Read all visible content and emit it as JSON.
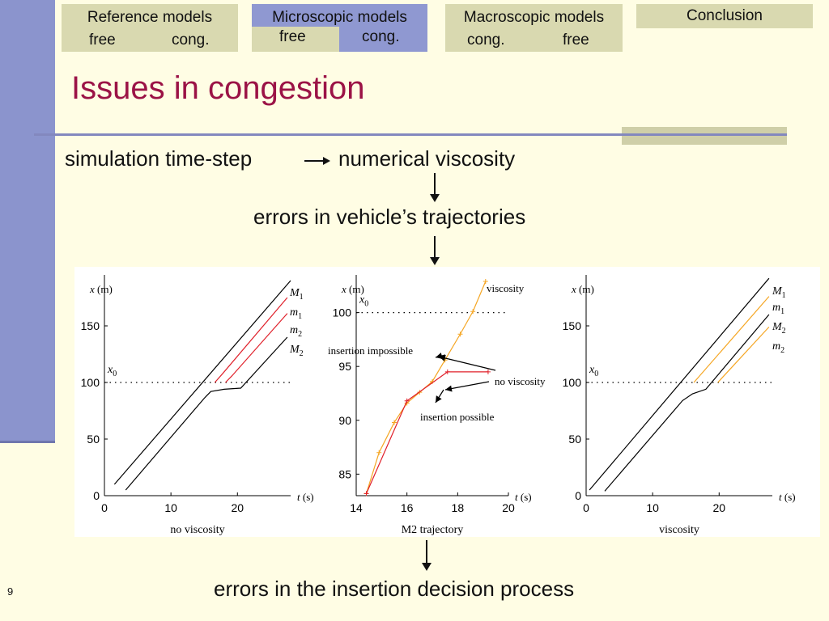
{
  "nav": [
    {
      "title": "Reference models",
      "left": "free",
      "right": "cong."
    },
    {
      "title": "Microscopic models",
      "left": "free",
      "right": "cong."
    },
    {
      "title": "Macroscopic models",
      "left": "cong.",
      "right": "free"
    },
    {
      "title": "Conclusion"
    }
  ],
  "title": "Issues in congestion",
  "flow": {
    "left": "simulation time-step",
    "right": "numerical viscosity",
    "middle": "errors in vehicle’s trajectories",
    "bottom": "errors in the insertion decision process"
  },
  "page_number": "9",
  "colors": {
    "red": "#e0202a",
    "orange": "#f5a623",
    "black": "#000000",
    "accent": "#9b1346"
  },
  "chart_data": [
    {
      "type": "line",
      "xlabel": "t (s)",
      "ylabel": "x (m)",
      "caption": "no viscosity",
      "xlim": [
        0,
        28
      ],
      "ylim": [
        0,
        195
      ],
      "xticks": [
        0,
        10,
        20
      ],
      "yticks": [
        0,
        50,
        100,
        150
      ],
      "reference_line": {
        "label": "x0",
        "y": 100
      },
      "series": [
        {
          "name": "M1",
          "color": "black",
          "points": [
            [
              1.5,
              10
            ],
            [
              28,
              190
            ]
          ]
        },
        {
          "name": "m1",
          "color": "red",
          "points": [
            [
              16.6,
              100
            ],
            [
              17.8,
              108
            ],
            [
              27.5,
              175
            ]
          ]
        },
        {
          "name": "m2",
          "color": "red",
          "points": [
            [
              18.2,
              100
            ],
            [
              19.2,
              106
            ],
            [
              27.5,
              161
            ]
          ]
        },
        {
          "name": "M2",
          "color": "black",
          "points": [
            [
              3.2,
              5
            ],
            [
              15,
              86
            ],
            [
              16,
              92
            ],
            [
              18,
              94
            ],
            [
              20.5,
              95
            ],
            [
              27.5,
              140
            ]
          ]
        }
      ]
    },
    {
      "type": "line",
      "xlabel": "t (s)",
      "ylabel": "x (m)",
      "caption": "M2 trajectory",
      "xlim": [
        14,
        20
      ],
      "ylim": [
        83,
        103.5
      ],
      "xticks": [
        14,
        16,
        18,
        20
      ],
      "yticks": [
        85,
        90,
        95,
        100
      ],
      "reference_line": {
        "label": "x0",
        "y": 100
      },
      "series": [
        {
          "name": "viscosity",
          "color": "orange",
          "points": [
            [
              14.4,
              83.2
            ],
            [
              14.9,
              87
            ],
            [
              15.5,
              89.8
            ],
            [
              16,
              91.6
            ],
            [
              16.5,
              92.6
            ],
            [
              17,
              93.6
            ],
            [
              17.5,
              95.6
            ],
            [
              18.1,
              98
            ],
            [
              18.6,
              100.1
            ],
            [
              19.1,
              102.9
            ]
          ]
        },
        {
          "name": "no viscosity",
          "color": "red",
          "points": [
            [
              14.4,
              83.2
            ],
            [
              16,
              91.8
            ],
            [
              17.6,
              94.5
            ],
            [
              19.2,
              94.5
            ]
          ]
        }
      ],
      "annotations": [
        "insertion impossible",
        "insertion possible"
      ]
    },
    {
      "type": "line",
      "xlabel": "t (s)",
      "ylabel": "x (m)",
      "caption": "viscosity",
      "xlim": [
        0,
        28
      ],
      "ylim": [
        0,
        195
      ],
      "xticks": [
        0,
        10,
        20
      ],
      "yticks": [
        0,
        50,
        100,
        150
      ],
      "reference_line": {
        "label": "x0",
        "y": 100
      },
      "series": [
        {
          "name": "M1",
          "color": "black",
          "points": [
            [
              0.5,
              5
            ],
            [
              27.5,
              192
            ]
          ]
        },
        {
          "name": "m1",
          "color": "orange",
          "points": [
            [
              16.2,
              100
            ],
            [
              27.5,
              176
            ]
          ]
        },
        {
          "name": "M2",
          "color": "black",
          "points": [
            [
              2.8,
              4
            ],
            [
              14.5,
              84
            ],
            [
              16,
              90
            ],
            [
              18,
              94
            ],
            [
              27.5,
              160
            ]
          ]
        },
        {
          "name": "m2",
          "color": "orange",
          "points": [
            [
              19.8,
              100
            ],
            [
              27.5,
              149
            ]
          ]
        }
      ]
    }
  ]
}
